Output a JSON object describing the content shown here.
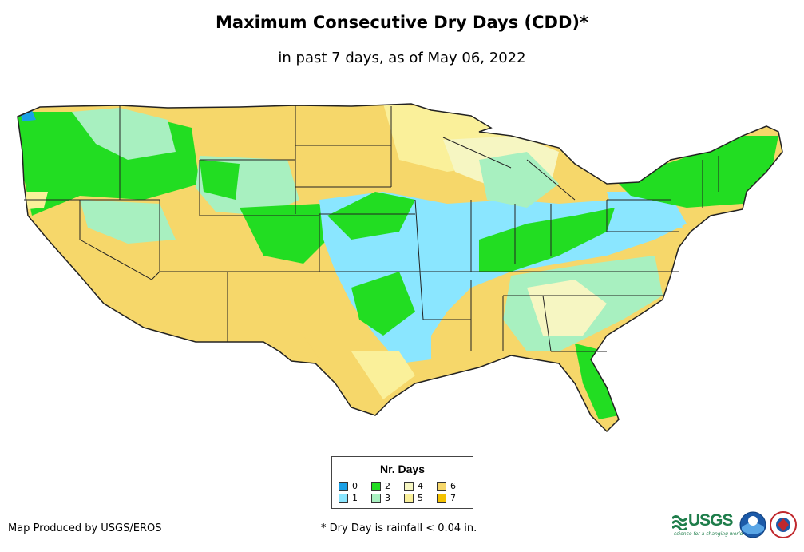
{
  "title": "Maximum Consecutive Dry Days (CDD)*",
  "subtitle": "in past 7 days, as of May 06, 2022",
  "legend": {
    "title": "Nr. Days",
    "items": [
      {
        "label": "0",
        "color": "#1aa0e6"
      },
      {
        "label": "1",
        "color": "#8ae6ff"
      },
      {
        "label": "2",
        "color": "#22dd22"
      },
      {
        "label": "3",
        "color": "#a8f0c0"
      },
      {
        "label": "4",
        "color": "#f6f6c2"
      },
      {
        "label": "5",
        "color": "#faf09a"
      },
      {
        "label": "6",
        "color": "#f6d76a"
      },
      {
        "label": "7",
        "color": "#f4c200"
      }
    ]
  },
  "footer": {
    "producer": "Map Produced by USGS/EROS",
    "note": "* Dry Day is rainfall < 0.04 in."
  },
  "logos": {
    "usgs": "USGS",
    "usgs_tagline": "science for a changing world",
    "noaa_icon": "noaa-logo-icon",
    "nws_icon": "nws-logo-icon"
  }
}
